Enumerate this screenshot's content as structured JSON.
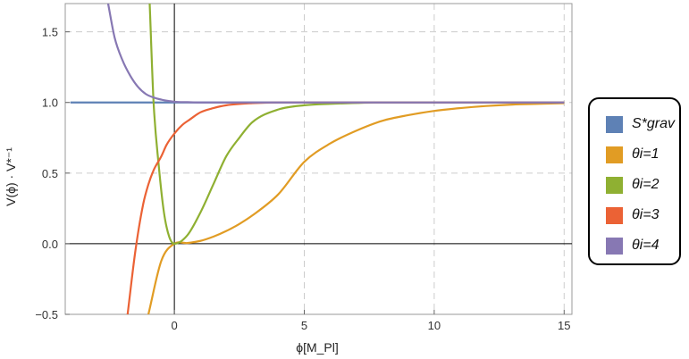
{
  "chart_data": {
    "type": "line",
    "xlabel": "ϕ[M_Pl]",
    "ylabel": "V(ϕ) · V*⁻¹",
    "xlim": [
      -4.2,
      15.3
    ],
    "ylim": [
      -0.5,
      1.7
    ],
    "x_ticks": [
      "0",
      "5",
      "10",
      "15"
    ],
    "y_ticks": [
      "−0.5",
      "0.0",
      "0.5",
      "1.0",
      "1.5"
    ],
    "x_tick_values": [
      0,
      5,
      10,
      15
    ],
    "y_tick_values": [
      -0.5,
      0.0,
      0.5,
      1.0,
      1.5
    ],
    "grid": true,
    "legend_position": "right",
    "series": [
      {
        "name": "S*grav",
        "color": "#5e81b5",
        "x": [
          -4,
          0,
          5,
          10,
          15
        ],
        "y": [
          1.0,
          1.0,
          1.0,
          1.0,
          1.0
        ]
      },
      {
        "name": "θi=1",
        "color": "#e19c24",
        "x": [
          -1.0,
          -0.5,
          0,
          0.5,
          1,
          1.5,
          2,
          2.5,
          3,
          4,
          5,
          6,
          7,
          8,
          9,
          10,
          11,
          12,
          13,
          14,
          15
        ],
        "y": [
          -0.5,
          -0.12,
          0.0,
          0.005,
          0.02,
          0.05,
          0.09,
          0.14,
          0.2,
          0.35,
          0.58,
          0.71,
          0.8,
          0.87,
          0.91,
          0.94,
          0.96,
          0.975,
          0.985,
          0.99,
          0.995
        ]
      },
      {
        "name": "θi=2",
        "color": "#8fb032",
        "x": [
          -0.95,
          -0.8,
          -0.6,
          -0.4,
          -0.2,
          0,
          0.5,
          1,
          1.5,
          2,
          2.5,
          3,
          4,
          5,
          6,
          8,
          10,
          15
        ],
        "y": [
          1.7,
          1.0,
          0.55,
          0.22,
          0.05,
          0.0,
          0.06,
          0.22,
          0.42,
          0.62,
          0.75,
          0.86,
          0.95,
          0.98,
          0.99,
          1.0,
          1.0,
          1.0
        ]
      },
      {
        "name": "θi=3",
        "color": "#eb6235",
        "x": [
          -1.8,
          -1.5,
          -1.2,
          -1.0,
          -0.8,
          -0.5,
          -0.3,
          0,
          0.3,
          0.6,
          1,
          1.5,
          2,
          3,
          4,
          6,
          10,
          15
        ],
        "y": [
          -0.5,
          -0.05,
          0.28,
          0.42,
          0.52,
          0.62,
          0.7,
          0.78,
          0.84,
          0.88,
          0.93,
          0.96,
          0.98,
          0.995,
          1.0,
          1.0,
          1.0,
          1.0
        ]
      },
      {
        "name": "θi=4",
        "color": "#8778b3",
        "x": [
          -2.55,
          -2.3,
          -2,
          -1.7,
          -1.4,
          -1.1,
          -0.8,
          -0.5,
          -0.2,
          0,
          0.5,
          1,
          2,
          5,
          10,
          15
        ],
        "y": [
          1.7,
          1.46,
          1.3,
          1.19,
          1.11,
          1.06,
          1.035,
          1.02,
          1.01,
          1.005,
          1.002,
          1.0,
          1.0,
          1.0,
          1.0,
          1.0
        ]
      }
    ]
  }
}
